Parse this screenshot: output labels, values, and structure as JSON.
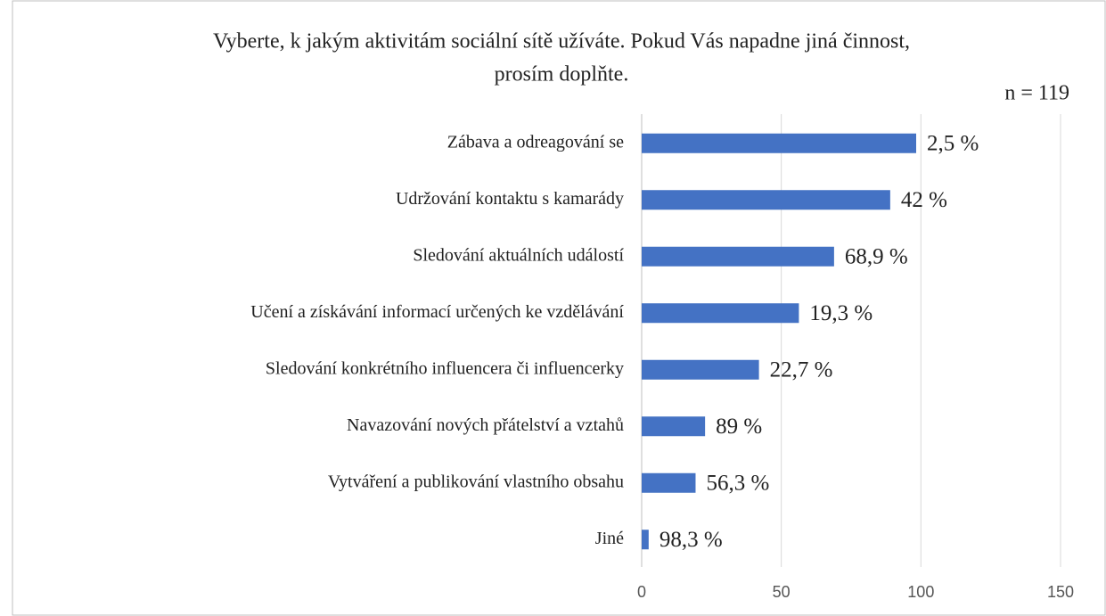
{
  "chart_data": {
    "type": "bar",
    "orientation": "horizontal",
    "title": "Vyberte, k jakým aktivitám sociální sítě užíváte. Pokud Vás napadne jiná činnost,",
    "subtitle": "prosím doplňte.",
    "note": "n = 119",
    "categories": [
      "Zábava a odreagování se",
      "Udržování kontaktu s kamarády",
      "Sledování aktuálních událostí",
      "Učení a získávání informací určených ke vzdělávání",
      "Sledování konkrétního influencera či influencerky",
      "Navazování nových přátelství a vztahů",
      "Vytváření a publikování vlastního obsahu",
      "Jiné"
    ],
    "values": [
      98.3,
      89,
      68.9,
      56.3,
      42,
      22.7,
      19.3,
      2.5
    ],
    "annotations": [
      "2,5 %",
      "42 %",
      "68,9 %",
      "19,3 %",
      "22,7 %",
      "89 %",
      "56,3 %",
      "98,3 %"
    ],
    "color": "#4472c4",
    "xlim": [
      0,
      150
    ],
    "xticks": [
      0,
      50,
      100,
      150
    ],
    "grid": true
  }
}
